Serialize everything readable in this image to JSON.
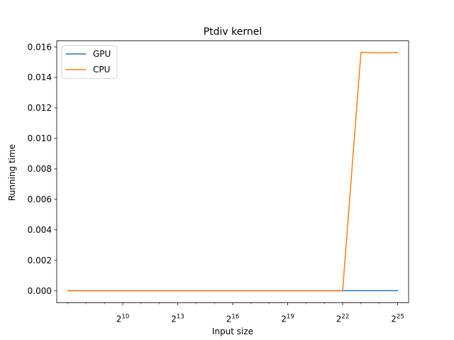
{
  "chart_data": {
    "type": "line",
    "title": "Ptdiv kernel",
    "xlabel": "Input size",
    "ylabel": "Running time",
    "x_scale": "log2",
    "x": [
      128,
      256,
      512,
      1024,
      2048,
      4096,
      8192,
      16384,
      32768,
      65536,
      131072,
      262144,
      524288,
      1048576,
      2097152,
      4194304,
      8388608,
      16777216,
      33554432
    ],
    "xlim_log2": [
      6.4,
      25.6
    ],
    "ylim": [
      -0.00078,
      0.0164
    ],
    "xticks": [
      {
        "base": "2",
        "exp": "10",
        "log2": 10
      },
      {
        "base": "2",
        "exp": "13",
        "log2": 13
      },
      {
        "base": "2",
        "exp": "16",
        "log2": 16
      },
      {
        "base": "2",
        "exp": "19",
        "log2": 19
      },
      {
        "base": "2",
        "exp": "22",
        "log2": 22
      },
      {
        "base": "2",
        "exp": "25",
        "log2": 25
      }
    ],
    "yticks": [
      {
        "label": "0.000",
        "value": 0.0
      },
      {
        "label": "0.002",
        "value": 0.002
      },
      {
        "label": "0.004",
        "value": 0.004
      },
      {
        "label": "0.006",
        "value": 0.006
      },
      {
        "label": "0.008",
        "value": 0.008
      },
      {
        "label": "0.010",
        "value": 0.01
      },
      {
        "label": "0.012",
        "value": 0.012
      },
      {
        "label": "0.014",
        "value": 0.014
      },
      {
        "label": "0.016",
        "value": 0.016
      }
    ],
    "grid": false,
    "legend_position": "top-left",
    "series": [
      {
        "name": "GPU",
        "color": "#1f77b4",
        "values": [
          1e-05,
          1e-05,
          1e-05,
          1e-05,
          1e-05,
          1e-05,
          1e-05,
          1e-05,
          1e-05,
          1e-05,
          1e-05,
          1e-05,
          1e-05,
          1e-05,
          1e-05,
          1e-05,
          1e-05,
          1e-05,
          1e-05
        ]
      },
      {
        "name": "CPU",
        "color": "#ff7f0e",
        "values": [
          0.0,
          0.0,
          0.0,
          0.0,
          0.0,
          0.0,
          0.0,
          0.0,
          0.0,
          0.0,
          0.0,
          0.0,
          0.0,
          0.0,
          0.0,
          0.0,
          0.01564,
          0.01561,
          0.01563
        ]
      }
    ]
  }
}
